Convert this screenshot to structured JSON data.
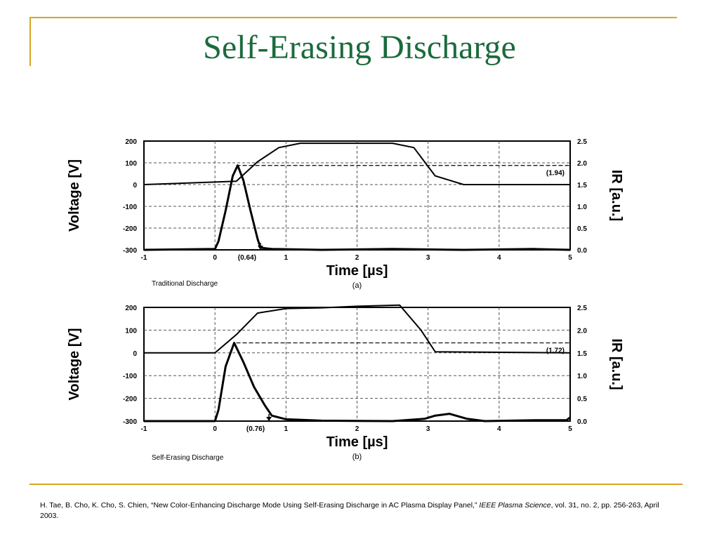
{
  "slide": {
    "title": "Self-Erasing Discharge",
    "caption_a": "Traditional Discharge",
    "caption_b": "Self-Erasing Discharge",
    "citation_pre": "H. Tae, B. Cho, K. Cho, S. Chien, “New Color-Enhancing Discharge Mode Using Self-Erasing Discharge in AC Plasma Display Panel,” ",
    "citation_journal": "IEEE Plasma Science",
    "citation_post": ", vol. 31, no. 2, pp. 256-263, April 2003."
  },
  "colors": {
    "title": "#1a6b3c",
    "rule": "#d9a521",
    "curve": "#000000"
  },
  "chart_data": [
    {
      "type": "line",
      "panel_label": "(a)",
      "xlabel": "Time [µs]",
      "ylabel": "Voltage [V]",
      "y2label": "IR [a.u.]",
      "xlim": [
        -1,
        5
      ],
      "ylim": [
        -300,
        200
      ],
      "y2lim": [
        0,
        2.5
      ],
      "x_ticks": [
        "-1",
        "0",
        "1",
        "2",
        "3",
        "4",
        "5"
      ],
      "y_ticks": [
        "200",
        "100",
        "0",
        "-100",
        "-200",
        "-300"
      ],
      "y2_ticks": [
        "2.5",
        "2.0",
        "1.5",
        "1.0",
        "0.5",
        "0.0"
      ],
      "grid": true,
      "annotations": {
        "peak_label": "(1.94)",
        "peak_ir": 1.94,
        "width_label": "(0.64)",
        "width_x": 0.64
      },
      "series": [
        {
          "axis": "left",
          "x": [
            -1,
            0.3,
            0.6,
            0.9,
            1.2,
            2.0,
            2.5,
            2.8,
            3.1,
            3.5,
            5.0
          ],
          "y": [
            0,
            15,
            105,
            170,
            190,
            190,
            190,
            170,
            40,
            0,
            0
          ]
        },
        {
          "axis": "right",
          "x": [
            -1,
            0,
            0.05,
            0.15,
            0.25,
            0.32,
            0.4,
            0.5,
            0.6,
            0.64,
            0.8,
            1.5,
            2.5,
            3.5,
            4.5,
            5.0
          ],
          "y": [
            0,
            0.02,
            0.2,
            0.9,
            1.7,
            1.94,
            1.6,
            0.9,
            0.25,
            0.05,
            0.02,
            0.0,
            0.02,
            0.0,
            0.02,
            0.0
          ]
        }
      ]
    },
    {
      "type": "line",
      "panel_label": "(b)",
      "xlabel": "Time [µs]",
      "ylabel": "Voltage [V]",
      "y2label": "IR [a.u.]",
      "xlim": [
        -1,
        5
      ],
      "ylim": [
        -300,
        200
      ],
      "y2lim": [
        0,
        2.5
      ],
      "x_ticks": [
        "-1",
        "0",
        "1",
        "2",
        "3",
        "4",
        "5"
      ],
      "y_ticks": [
        "200",
        "100",
        "0",
        "-100",
        "-200",
        "-300"
      ],
      "y2_ticks": [
        "2.5",
        "2.0",
        "1.5",
        "1.0",
        "0.5",
        "0.0"
      ],
      "grid": true,
      "annotations": {
        "peak_label": "(1.72)",
        "peak_ir": 1.72,
        "width_label": "(0.76)",
        "width_x": 0.76
      },
      "series": [
        {
          "axis": "left",
          "x": [
            -1,
            0.0,
            0.3,
            0.6,
            1.0,
            1.5,
            2.0,
            2.6,
            2.9,
            3.1,
            5.0
          ],
          "y": [
            0,
            0,
            80,
            175,
            195,
            198,
            205,
            210,
            100,
            5,
            0
          ]
        },
        {
          "axis": "right",
          "x": [
            -1,
            0,
            0.05,
            0.15,
            0.27,
            0.4,
            0.55,
            0.7,
            0.8,
            1.0,
            1.5,
            2.5,
            2.95,
            3.1,
            3.3,
            3.55,
            3.8,
            4.5,
            4.95,
            5.0
          ],
          "y": [
            0,
            0,
            0.25,
            1.2,
            1.72,
            1.3,
            0.75,
            0.35,
            0.12,
            0.04,
            0.01,
            0.0,
            0.05,
            0.12,
            0.16,
            0.05,
            0.0,
            0.02,
            0.02,
            0.08
          ]
        }
      ]
    }
  ]
}
